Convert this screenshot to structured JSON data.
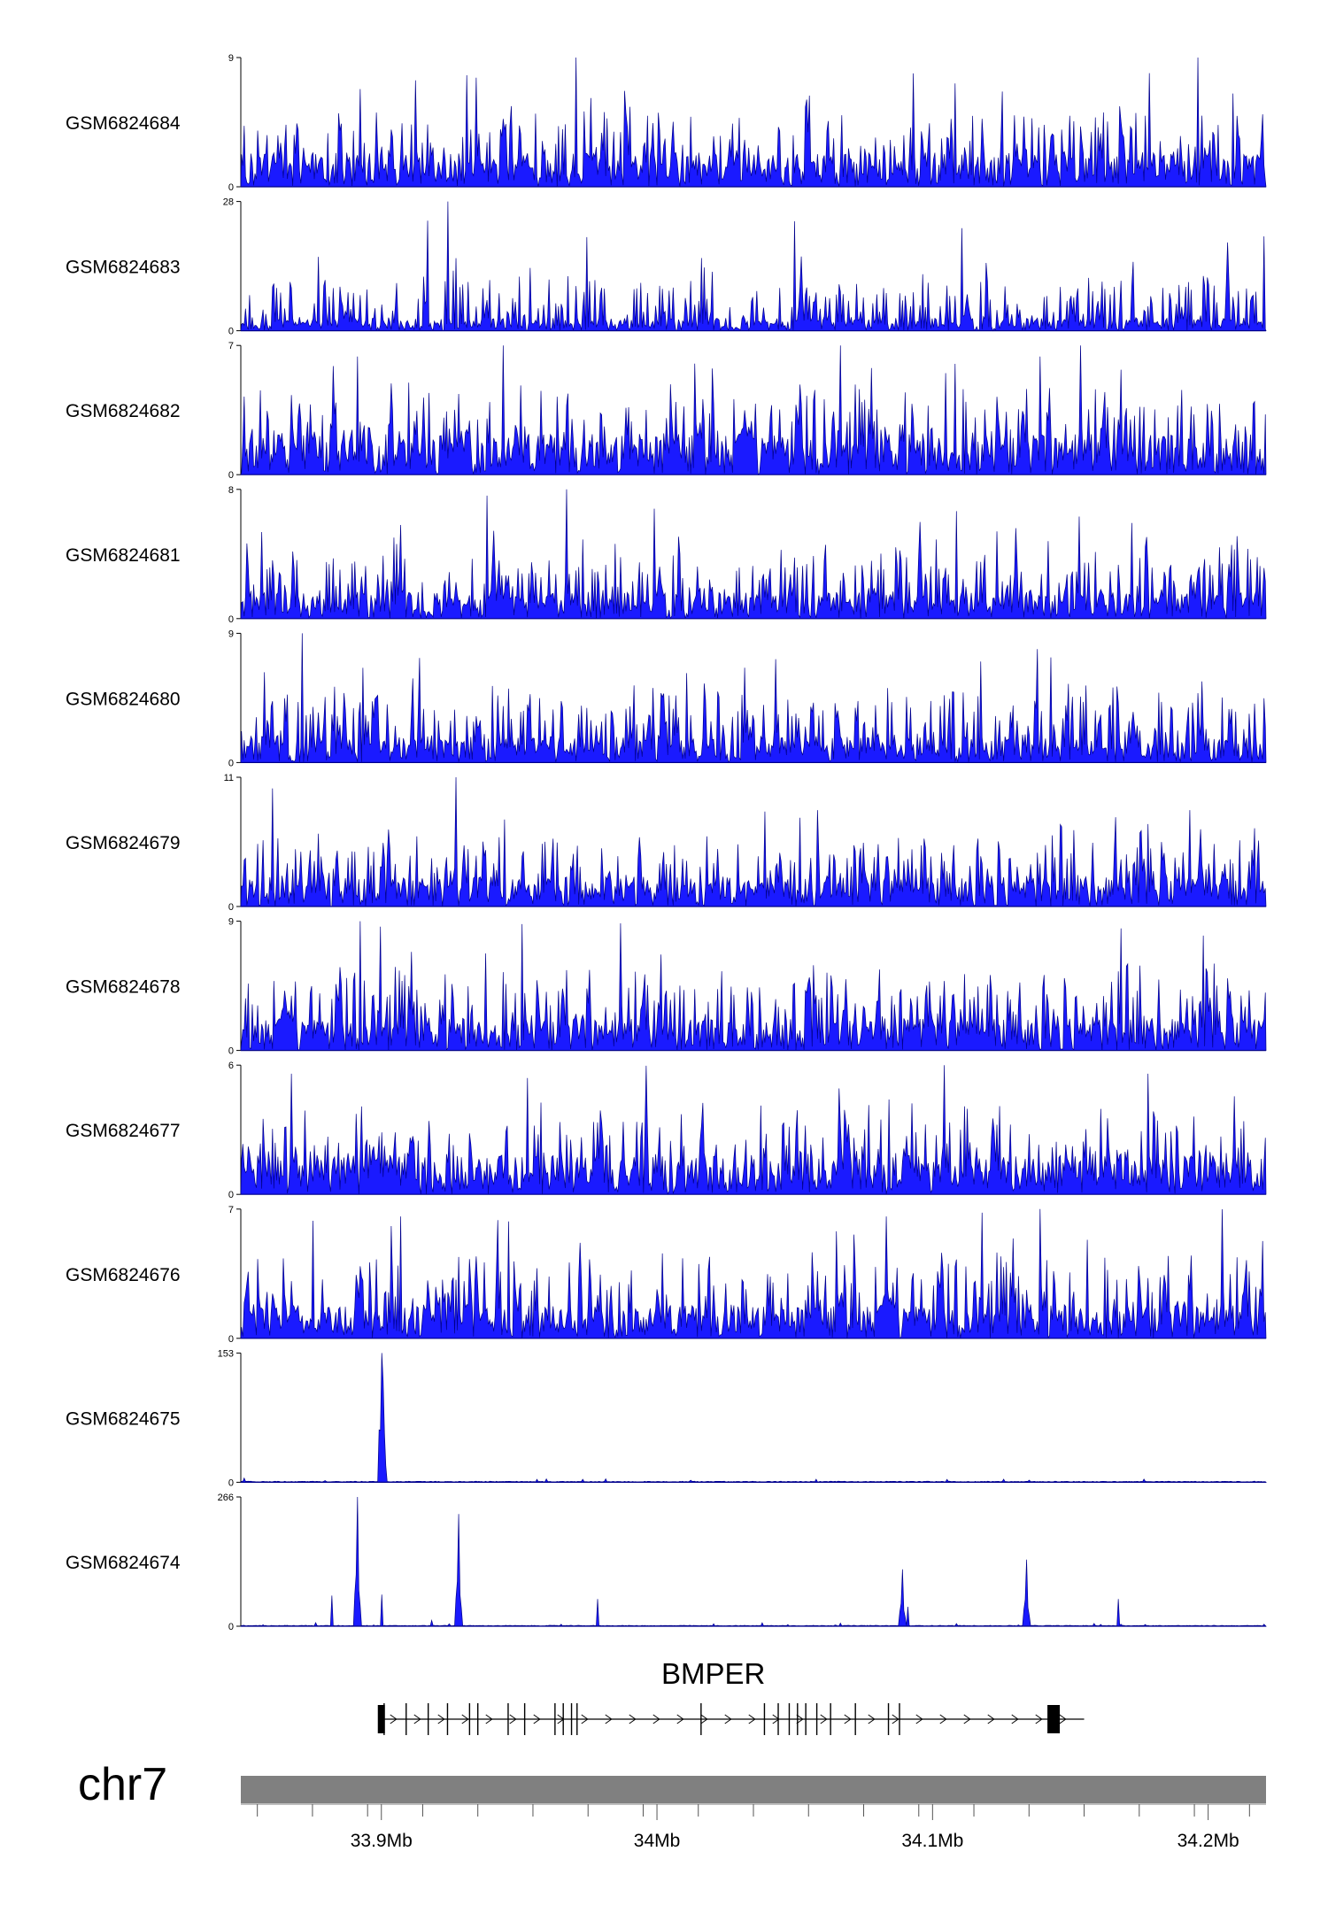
{
  "chart_data": {
    "type": "area",
    "title": "",
    "x_unit": "Mb",
    "x_range": [
      33.849,
      34.221
    ],
    "tracks": [
      {
        "name": "GSM6824684",
        "ymin": 0,
        "ymax": 9,
        "baseline": 1.7,
        "noise": 2.2,
        "seed": 84,
        "peaks": [
          [
            33.934,
            7.6
          ],
          [
            34.093,
            7.9
          ],
          [
            34.196,
            9.0
          ],
          [
            34.108,
            7.2
          ],
          [
            33.892,
            6.8
          ]
        ]
      },
      {
        "name": "GSM6824683",
        "ymin": 0,
        "ymax": 28,
        "baseline": 2.0,
        "noise": 6.0,
        "seed": 83,
        "peaks": [
          [
            33.924,
            28.0
          ],
          [
            33.926,
            13.0
          ],
          [
            33.877,
            16.0
          ]
        ]
      },
      {
        "name": "GSM6824682",
        "ymin": 0,
        "ymax": 7,
        "baseline": 1.6,
        "noise": 1.8,
        "seed": 82,
        "peaks": [
          [
            33.944,
            7.0
          ],
          [
            34.139,
            6.4
          ],
          [
            33.891,
            6.4
          ],
          [
            34.108,
            6.0
          ]
        ]
      },
      {
        "name": "GSM6824681",
        "ymin": 0,
        "ymax": 8,
        "baseline": 1.2,
        "noise": 1.9,
        "seed": 81,
        "peaks": [
          [
            33.967,
            8.0
          ],
          [
            33.907,
            5.8
          ],
          [
            34.101,
            4.9
          ],
          [
            33.973,
            4.9
          ]
        ]
      },
      {
        "name": "GSM6824680",
        "ymin": 0,
        "ymax": 9,
        "baseline": 1.3,
        "noise": 2.3,
        "seed": 80,
        "peaks": [
          [
            33.871,
            9.0
          ],
          [
            34.043,
            7.2
          ],
          [
            34.138,
            7.9
          ],
          [
            33.893,
            6.6
          ]
        ]
      },
      {
        "name": "GSM6824679",
        "ymin": 0,
        "ymax": 11,
        "baseline": 1.8,
        "noise": 2.6,
        "seed": 79,
        "peaks": [
          [
            33.927,
            11.0
          ],
          [
            34.058,
            8.2
          ],
          [
            34.166,
            7.6
          ],
          [
            34.193,
            8.2
          ]
        ]
      },
      {
        "name": "GSM6824678",
        "ymin": 0,
        "ymax": 9,
        "baseline": 1.6,
        "noise": 2.4,
        "seed": 78,
        "peaks": [
          [
            33.892,
            9.0
          ],
          [
            33.951,
            8.8
          ],
          [
            34.168,
            8.5
          ],
          [
            34.198,
            8.0
          ]
        ]
      },
      {
        "name": "GSM6824677",
        "ymin": 0,
        "ymax": 6,
        "baseline": 1.3,
        "noise": 1.6,
        "seed": 77,
        "peaks": [
          [
            34.104,
            6.0
          ],
          [
            33.867,
            5.6
          ],
          [
            33.953,
            5.4
          ],
          [
            34.178,
            5.6
          ]
        ]
      },
      {
        "name": "GSM6824676",
        "ymin": 0,
        "ymax": 7,
        "baseline": 1.3,
        "noise": 1.9,
        "seed": 76,
        "peaks": [
          [
            34.139,
            7.0
          ],
          [
            33.907,
            6.6
          ],
          [
            34.083,
            6.6
          ],
          [
            33.942,
            6.4
          ]
        ]
      },
      {
        "name": "GSM6824675",
        "ymin": 0,
        "ymax": 153,
        "baseline": 1.0,
        "noise": 1.6,
        "seed": 75,
        "sparse": true,
        "peaks": [
          [
            33.9,
            153.0
          ],
          [
            33.9005,
            120.0
          ],
          [
            33.899,
            62.0
          ],
          [
            33.901,
            58.0
          ],
          [
            33.981,
            4.0
          ],
          [
            33.973,
            2.0
          ],
          [
            34.135,
            2.5
          ],
          [
            33.85,
            5.0
          ]
        ]
      },
      {
        "name": "GSM6824674",
        "ymin": 0,
        "ymax": 266,
        "baseline": 1.5,
        "noise": 3.0,
        "seed": 74,
        "sparse": true,
        "peaks": [
          [
            33.891,
            266.0
          ],
          [
            33.928,
            231.0
          ],
          [
            34.134,
            137.0
          ],
          [
            34.089,
            117.0
          ],
          [
            33.882,
            63.0
          ],
          [
            33.978,
            56.0
          ],
          [
            34.167,
            56.0
          ],
          [
            33.9,
            65.0
          ],
          [
            34.091,
            40.0
          ],
          [
            33.918,
            12.0
          ]
        ]
      }
    ],
    "gene": {
      "name": "BMPER",
      "start": 33.9,
      "end": 34.155,
      "strand": "+",
      "exons": [
        33.9,
        33.901,
        33.909,
        33.917,
        33.924,
        33.932,
        33.935,
        33.946,
        33.952,
        33.963,
        33.966,
        33.969,
        33.971,
        34.016,
        34.039,
        34.044,
        34.048,
        34.051,
        34.054,
        34.058,
        34.063,
        34.072,
        34.084,
        34.088,
        34.142
      ]
    },
    "chromosome": "chr7",
    "x_ticks_labeled": [
      {
        "value": 33.9,
        "label": "33.9Mb"
      },
      {
        "value": 34.0,
        "label": "34Mb"
      },
      {
        "value": 34.1,
        "label": "34.1Mb"
      },
      {
        "value": 34.2,
        "label": "34.2Mb"
      }
    ],
    "x_ticks_minor": [
      33.855,
      33.875,
      33.895,
      33.915,
      33.935,
      33.955,
      33.975,
      33.995,
      34.015,
      34.035,
      34.055,
      34.075,
      34.095,
      34.115,
      34.135,
      34.155,
      34.175,
      34.195,
      34.215
    ]
  }
}
